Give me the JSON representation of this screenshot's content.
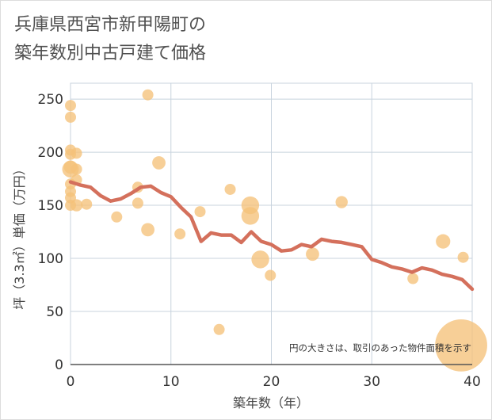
{
  "title_line1": "兵庫県西宮市新甲陽町の",
  "title_line2": "築年数別中古戸建て価格",
  "chart_data": {
    "type": "scatter",
    "title": "兵庫県西宮市新甲陽町の築年数別中古戸建て価格",
    "xlabel": "築年数（年）",
    "ylabel": "坪（3.3㎡）単価（万円）",
    "xlim": [
      0,
      40
    ],
    "ylim": [
      0,
      265
    ],
    "x_ticks": [
      0,
      10,
      20,
      30,
      40
    ],
    "y_ticks": [
      0,
      50,
      100,
      150,
      200,
      250
    ],
    "grid": true,
    "note": "円の大きさは、取引のあった物件面積を示す",
    "colors": {
      "points": "#f5c27a",
      "line": "#d4705c",
      "grid": "#c8d3de",
      "axis_text": "#333333"
    },
    "scatter_points": [
      {
        "x": 0,
        "y": 244,
        "size": 1
      },
      {
        "x": 0,
        "y": 233,
        "size": 1
      },
      {
        "x": 0,
        "y": 202,
        "size": 1
      },
      {
        "x": 0,
        "y": 198,
        "size": 1
      },
      {
        "x": 0,
        "y": 186,
        "size": 1.2
      },
      {
        "x": 0,
        "y": 184,
        "size": 1.5
      },
      {
        "x": 0,
        "y": 170,
        "size": 1
      },
      {
        "x": 0,
        "y": 163,
        "size": 1
      },
      {
        "x": 0,
        "y": 157,
        "size": 1
      },
      {
        "x": 0,
        "y": 150,
        "size": 1
      },
      {
        "x": 0.6,
        "y": 199,
        "size": 1
      },
      {
        "x": 0.6,
        "y": 184,
        "size": 1
      },
      {
        "x": 0.6,
        "y": 174,
        "size": 1
      },
      {
        "x": 0.6,
        "y": 150,
        "size": 1.1
      },
      {
        "x": 1.6,
        "y": 151,
        "size": 1
      },
      {
        "x": 4.6,
        "y": 139,
        "size": 1
      },
      {
        "x": 6.7,
        "y": 167,
        "size": 1
      },
      {
        "x": 6.7,
        "y": 152,
        "size": 1
      },
      {
        "x": 7.7,
        "y": 254,
        "size": 1
      },
      {
        "x": 7.7,
        "y": 127,
        "size": 1.2
      },
      {
        "x": 8.8,
        "y": 190,
        "size": 1.2
      },
      {
        "x": 10.9,
        "y": 123,
        "size": 1
      },
      {
        "x": 12.9,
        "y": 144,
        "size": 1
      },
      {
        "x": 14.8,
        "y": 33,
        "size": 1
      },
      {
        "x": 15.9,
        "y": 165,
        "size": 1
      },
      {
        "x": 17.9,
        "y": 150,
        "size": 1.6
      },
      {
        "x": 17.9,
        "y": 140,
        "size": 1.6
      },
      {
        "x": 18.9,
        "y": 99,
        "size": 1.6
      },
      {
        "x": 19.9,
        "y": 84,
        "size": 1
      },
      {
        "x": 24.1,
        "y": 104,
        "size": 1.2
      },
      {
        "x": 27.0,
        "y": 153,
        "size": 1.1
      },
      {
        "x": 34.1,
        "y": 81,
        "size": 1
      },
      {
        "x": 37.1,
        "y": 116,
        "size": 1.3
      },
      {
        "x": 39.1,
        "y": 101,
        "size": 1
      },
      {
        "x": 38.9,
        "y": 18,
        "size": 4.7
      }
    ],
    "trend_line": {
      "x": [
        0,
        1,
        2,
        3,
        4,
        5,
        6,
        7,
        8,
        9,
        10,
        11,
        12,
        13,
        14,
        15,
        16,
        17,
        18,
        19,
        20,
        21,
        22,
        23,
        24,
        25,
        26,
        27,
        28,
        29,
        30,
        31,
        32,
        33,
        34,
        35,
        36,
        37,
        38,
        39,
        40
      ],
      "y": [
        172,
        169,
        167,
        159,
        154,
        156,
        161,
        167,
        168,
        162,
        158,
        148,
        139,
        116,
        124,
        122,
        122,
        115,
        125,
        116,
        113,
        107,
        108,
        113,
        111,
        118,
        116,
        115,
        113,
        111,
        99,
        96,
        92,
        90,
        87,
        91,
        89,
        85,
        83,
        80,
        71
      ]
    }
  }
}
